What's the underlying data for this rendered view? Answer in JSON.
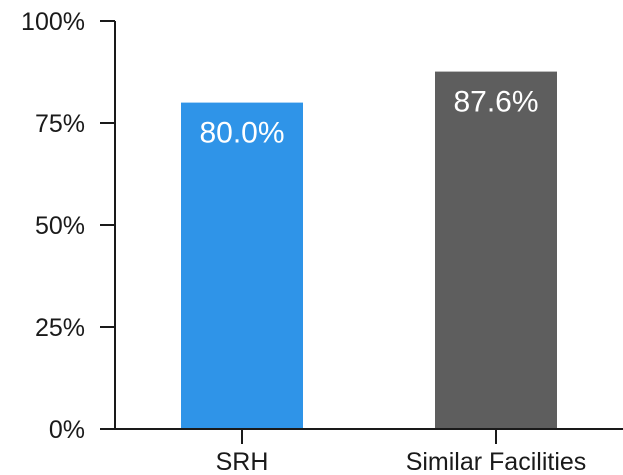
{
  "chart_data": {
    "type": "bar",
    "title": "",
    "xlabel": "",
    "ylabel": "",
    "categories": [
      "SRH",
      "Similar Facilities"
    ],
    "values": [
      80.0,
      87.6
    ],
    "data_labels": [
      "80.0%",
      "87.6%"
    ],
    "colors": [
      "#2f94e8",
      "#5e5e5e"
    ],
    "ylim": [
      0,
      100
    ],
    "yticks": [
      0,
      25,
      50,
      75,
      100
    ],
    "ytick_labels": [
      "0%",
      "25%",
      "50%",
      "75%",
      "100%"
    ],
    "grid": false,
    "legend": "none"
  }
}
